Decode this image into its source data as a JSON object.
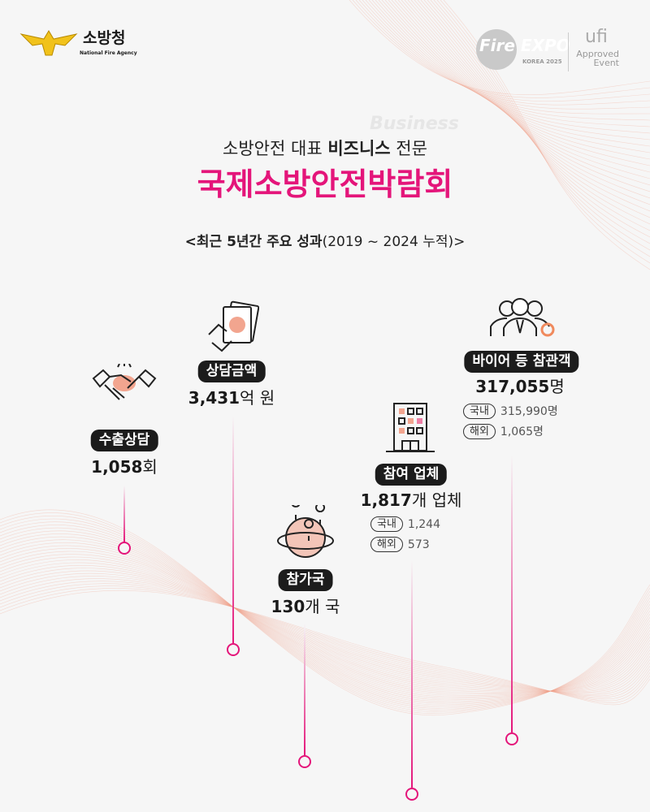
{
  "header": {
    "agency_logo": {
      "name_ko": "소방청",
      "name_en": "National Fire Agency",
      "icon": "fire-agency-emblem"
    },
    "expo_logo": {
      "text": "Fire EXPO",
      "sub": "KOREA 2025",
      "icon": "fire-expo-logo"
    },
    "ufi_logo": {
      "text": "ufi",
      "line1": "Approved",
      "line2": "Event"
    }
  },
  "intro": {
    "watermark": "Business",
    "subtitle_prefix": "소방안전 대표 ",
    "subtitle_bold": "비즈니스",
    "subtitle_suffix": " 전문",
    "title": "국제소방안전박람회",
    "period_bold": "<최근 5년간 주요 성과",
    "period_rest": "(2019 ~ 2024 누적)>"
  },
  "colors": {
    "accent": "#e4157a",
    "pill": "#1c1c1c",
    "icon_fill": "#f2a58f"
  },
  "stats": [
    {
      "label": "수출상담",
      "value": "1,058",
      "unit": "회",
      "icon": "handshake-icon"
    },
    {
      "label": "상담금액",
      "value": "3,431",
      "unit": "억 원",
      "icon": "money-hand-icon"
    },
    {
      "label": "참가국",
      "value": "130",
      "unit": "개 국",
      "icon": "globe-pin-icon"
    },
    {
      "label": "참여 업체",
      "value": "1,817",
      "unit": "개 업체",
      "icon": "building-icon",
      "breakdown": [
        {
          "tag": "국내",
          "value": "1,244"
        },
        {
          "tag": "해외",
          "value": "573"
        }
      ]
    },
    {
      "label": "바이어 등 참관객",
      "value": "317,055",
      "unit": "명",
      "icon": "people-gear-icon",
      "breakdown": [
        {
          "tag": "국내",
          "value": "315,990명"
        },
        {
          "tag": "해외",
          "value": "1,065명"
        }
      ]
    }
  ]
}
